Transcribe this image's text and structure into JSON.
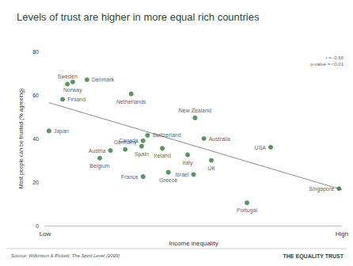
{
  "chart_data": {
    "type": "scatter",
    "title": "Levels of trust are higher in more equal rich countries",
    "x_label": "Income inequality",
    "y_label": "Most people can be trusted (% agreeing)",
    "xlim": [
      0,
      10
    ],
    "xticks": [
      {
        "value": 0,
        "label": "Low"
      },
      {
        "value": 10,
        "label": "High"
      }
    ],
    "ylim": [
      0,
      80
    ],
    "yticks": [
      0,
      20,
      40,
      60,
      80
    ],
    "grid": false,
    "color": "#2f7a3e",
    "marker": "circle",
    "points": [
      {
        "label": "Sweden",
        "x": 0.75,
        "y": 65
      },
      {
        "label": "Norway",
        "x": 0.93,
        "y": 66
      },
      {
        "label": "Finland",
        "x": 0.59,
        "y": 58
      },
      {
        "label": "Denmark",
        "x": 1.41,
        "y": 67
      },
      {
        "label": "Japan",
        "x": 0.13,
        "y": 43.5
      },
      {
        "label": "Netherlands",
        "x": 2.9,
        "y": 60.5
      },
      {
        "label": "Austria",
        "x": 2.2,
        "y": 34.5
      },
      {
        "label": "Belgium",
        "x": 1.84,
        "y": 31
      },
      {
        "label": "Germany",
        "x": 2.7,
        "y": 35
      },
      {
        "label": "Spain",
        "x": 3.25,
        "y": 36.5
      },
      {
        "label": "Canada",
        "x": 3.3,
        "y": 39
      },
      {
        "label": "Switzerland",
        "x": 3.45,
        "y": 41.5
      },
      {
        "label": "France",
        "x": 3.3,
        "y": 22.5
      },
      {
        "label": "Ireland",
        "x": 3.95,
        "y": 35.5
      },
      {
        "label": "Greece",
        "x": 4.15,
        "y": 24.5
      },
      {
        "label": "Italy",
        "x": 4.8,
        "y": 32.5
      },
      {
        "label": "Israel",
        "x": 5.0,
        "y": 23.5
      },
      {
        "label": "UK",
        "x": 5.6,
        "y": 30
      },
      {
        "label": "Australia",
        "x": 5.35,
        "y": 40
      },
      {
        "label": "New Zealand",
        "x": 5.05,
        "y": 49.5
      },
      {
        "label": "USA",
        "x": 7.6,
        "y": 36
      },
      {
        "label": "Portugal",
        "x": 6.8,
        "y": 10.5
      },
      {
        "label": "Singapore",
        "x": 9.9,
        "y": 17
      }
    ],
    "trend_line": {
      "x": [
        0.13,
        10
      ],
      "y": [
        56.5,
        16.5
      ],
      "color": "#8c8c8c"
    },
    "annotations": [
      "r = -0.66",
      "p-value = <0.01"
    ],
    "source": "Source: Wilkinson & Pickett, The Spirit Level (2009)",
    "brand": "THE EQUALITY TRUST"
  }
}
